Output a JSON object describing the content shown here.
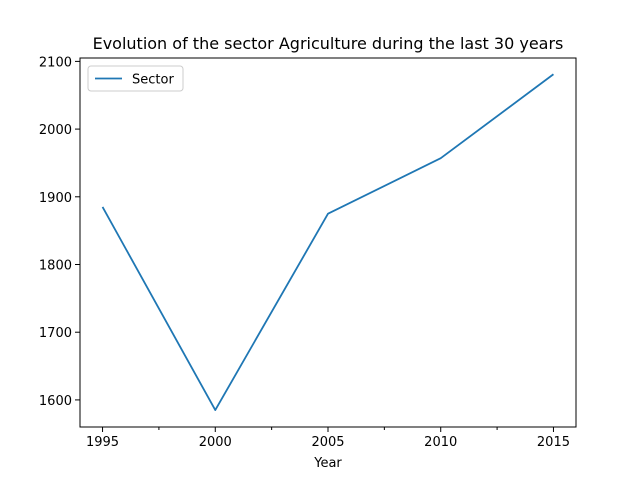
{
  "chart_data": {
    "type": "line",
    "title": "Evolution of the sector Agriculture during the last 30 years",
    "xlabel": "Year",
    "ylabel": "",
    "x": [
      1995,
      2000,
      2005,
      2010,
      2015
    ],
    "xticks": [
      1995,
      2000,
      2005,
      2010,
      2015
    ],
    "xminor": [
      1997.5,
      2002.5,
      2007.5,
      2012.5
    ],
    "xlim": [
      1994,
      2016
    ],
    "yticks": [
      1600,
      1700,
      1800,
      1900,
      2000,
      2100
    ],
    "ylim": [
      1560,
      2105
    ],
    "series": [
      {
        "name": "Sector",
        "color": "#1f77b4",
        "values": [
          1885,
          1585,
          1875,
          1957,
          2081
        ]
      }
    ],
    "legend_position": "top-left",
    "grid": false
  }
}
